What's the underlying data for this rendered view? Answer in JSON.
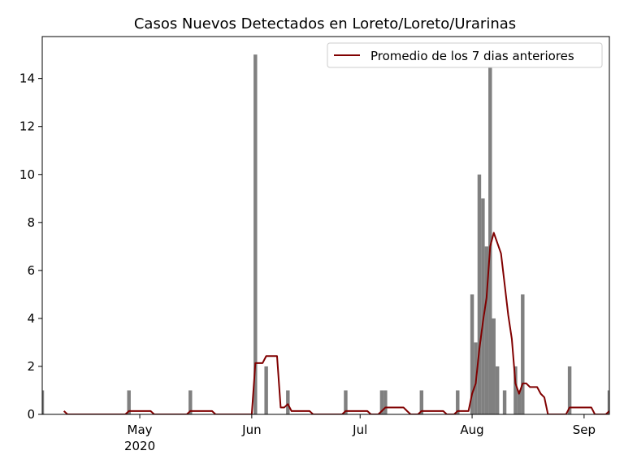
{
  "chart_data": {
    "type": "bar_line",
    "title": "Casos Nuevos Detectados en Loreto/Loreto/Urarinas",
    "categories": [
      null,
      null,
      null,
      null,
      null,
      null,
      null,
      null,
      null,
      null,
      null,
      null,
      null,
      null,
      null,
      null,
      null,
      null,
      null,
      null,
      null,
      null,
      null,
      null,
      null,
      null,
      null,
      "May\n2020",
      null,
      null,
      null,
      null,
      null,
      null,
      null,
      null,
      null,
      null,
      null,
      null,
      null,
      null,
      null,
      null,
      null,
      null,
      null,
      null,
      null,
      null,
      null,
      null,
      null,
      null,
      null,
      null,
      null,
      null,
      "Jun",
      null,
      null,
      null,
      null,
      null,
      null,
      null,
      null,
      null,
      null,
      null,
      null,
      null,
      null,
      null,
      null,
      null,
      null,
      null,
      null,
      null,
      null,
      null,
      null,
      null,
      null,
      null,
      null,
      null,
      "Jul",
      null,
      null,
      null,
      null,
      null,
      null,
      null,
      null,
      null,
      null,
      null,
      null,
      null,
      null,
      null,
      null,
      null,
      null,
      null,
      null,
      null,
      null,
      null,
      null,
      null,
      null,
      null,
      null,
      null,
      null,
      "Aug",
      null,
      null,
      null,
      null,
      null,
      null,
      null,
      null,
      null,
      null,
      null,
      null,
      null,
      null,
      null,
      null,
      null,
      null,
      null,
      null,
      null,
      null,
      null,
      null,
      null,
      null,
      null,
      null,
      null,
      null,
      "Sep",
      null,
      null,
      null,
      null,
      null,
      null,
      null
    ],
    "bars": {
      "color": "#808080",
      "values": [
        1,
        0,
        0,
        0,
        0,
        0,
        0,
        0,
        0,
        0,
        0,
        0,
        0,
        0,
        0,
        0,
        0,
        0,
        0,
        0,
        0,
        0,
        0,
        0,
        1,
        0,
        0,
        0,
        0,
        0,
        0,
        0,
        0,
        0,
        0,
        0,
        0,
        0,
        0,
        0,
        0,
        1,
        0,
        0,
        0,
        0,
        0,
        0,
        0,
        0,
        0,
        0,
        0,
        0,
        0,
        0,
        0,
        0,
        0,
        15,
        0,
        0,
        2,
        0,
        0,
        0,
        0,
        0,
        1,
        0,
        0,
        0,
        0,
        0,
        0,
        0,
        0,
        0,
        0,
        0,
        0,
        0,
        0,
        0,
        1,
        0,
        0,
        0,
        0,
        0,
        0,
        0,
        0,
        0,
        1,
        1,
        0,
        0,
        0,
        0,
        0,
        0,
        0,
        0,
        0,
        1,
        0,
        0,
        0,
        0,
        0,
        0,
        0,
        0,
        0,
        1,
        0,
        0,
        0,
        5,
        3,
        10,
        9,
        7,
        15,
        4,
        2,
        0,
        1,
        0,
        0,
        2,
        1,
        5,
        0,
        0,
        0,
        0,
        0,
        0,
        0,
        0,
        0,
        0,
        0,
        0,
        2,
        0,
        0,
        0,
        0,
        0,
        0,
        0,
        0,
        0,
        0,
        1
      ]
    },
    "series": [
      {
        "name": "Promedio de los 7 dias anteriores",
        "color": "#800000",
        "values": [
          null,
          null,
          null,
          null,
          null,
          null,
          0.14,
          0,
          0,
          0,
          0,
          0,
          0,
          0,
          0,
          0,
          0,
          0,
          0,
          0,
          0,
          0,
          0,
          0,
          0.14,
          0.14,
          0.14,
          0.14,
          0.14,
          0.14,
          0.14,
          0,
          0,
          0,
          0,
          0,
          0,
          0,
          0,
          0,
          0,
          0.14,
          0.14,
          0.14,
          0.14,
          0.14,
          0.14,
          0.14,
          0,
          0,
          0,
          0,
          0,
          0,
          0,
          0,
          0,
          0,
          0,
          2.14,
          2.14,
          2.14,
          2.43,
          2.43,
          2.43,
          2.43,
          0.29,
          0.29,
          0.43,
          0.14,
          0.14,
          0.14,
          0.14,
          0.14,
          0.14,
          0,
          0,
          0,
          0,
          0,
          0,
          0,
          0,
          0,
          0.14,
          0.14,
          0.14,
          0.14,
          0.14,
          0.14,
          0.14,
          0,
          0,
          0,
          0.14,
          0.29,
          0.29,
          0.29,
          0.29,
          0.29,
          0.29,
          0.14,
          0,
          0,
          0,
          0.14,
          0.14,
          0.14,
          0.14,
          0.14,
          0.14,
          0.14,
          0,
          0,
          0,
          0.14,
          0.14,
          0.14,
          0.14,
          0.86,
          1.29,
          2.71,
          3.86,
          4.86,
          7.0,
          7.57,
          7.14,
          6.71,
          5.43,
          4.14,
          3.14,
          1.29,
          0.86,
          1.29,
          1.29,
          1.14,
          1.14,
          1.14,
          0.86,
          0.71,
          0,
          0,
          0,
          0,
          0,
          0,
          0.29,
          0.29,
          0.29,
          0.29,
          0.29,
          0.29,
          0.29,
          0,
          0,
          0,
          0,
          0.14
        ]
      }
    ],
    "ylim": [
      0,
      15.75
    ],
    "yticks": [
      0,
      2,
      4,
      6,
      8,
      10,
      12,
      14
    ],
    "legend": "upper right"
  }
}
